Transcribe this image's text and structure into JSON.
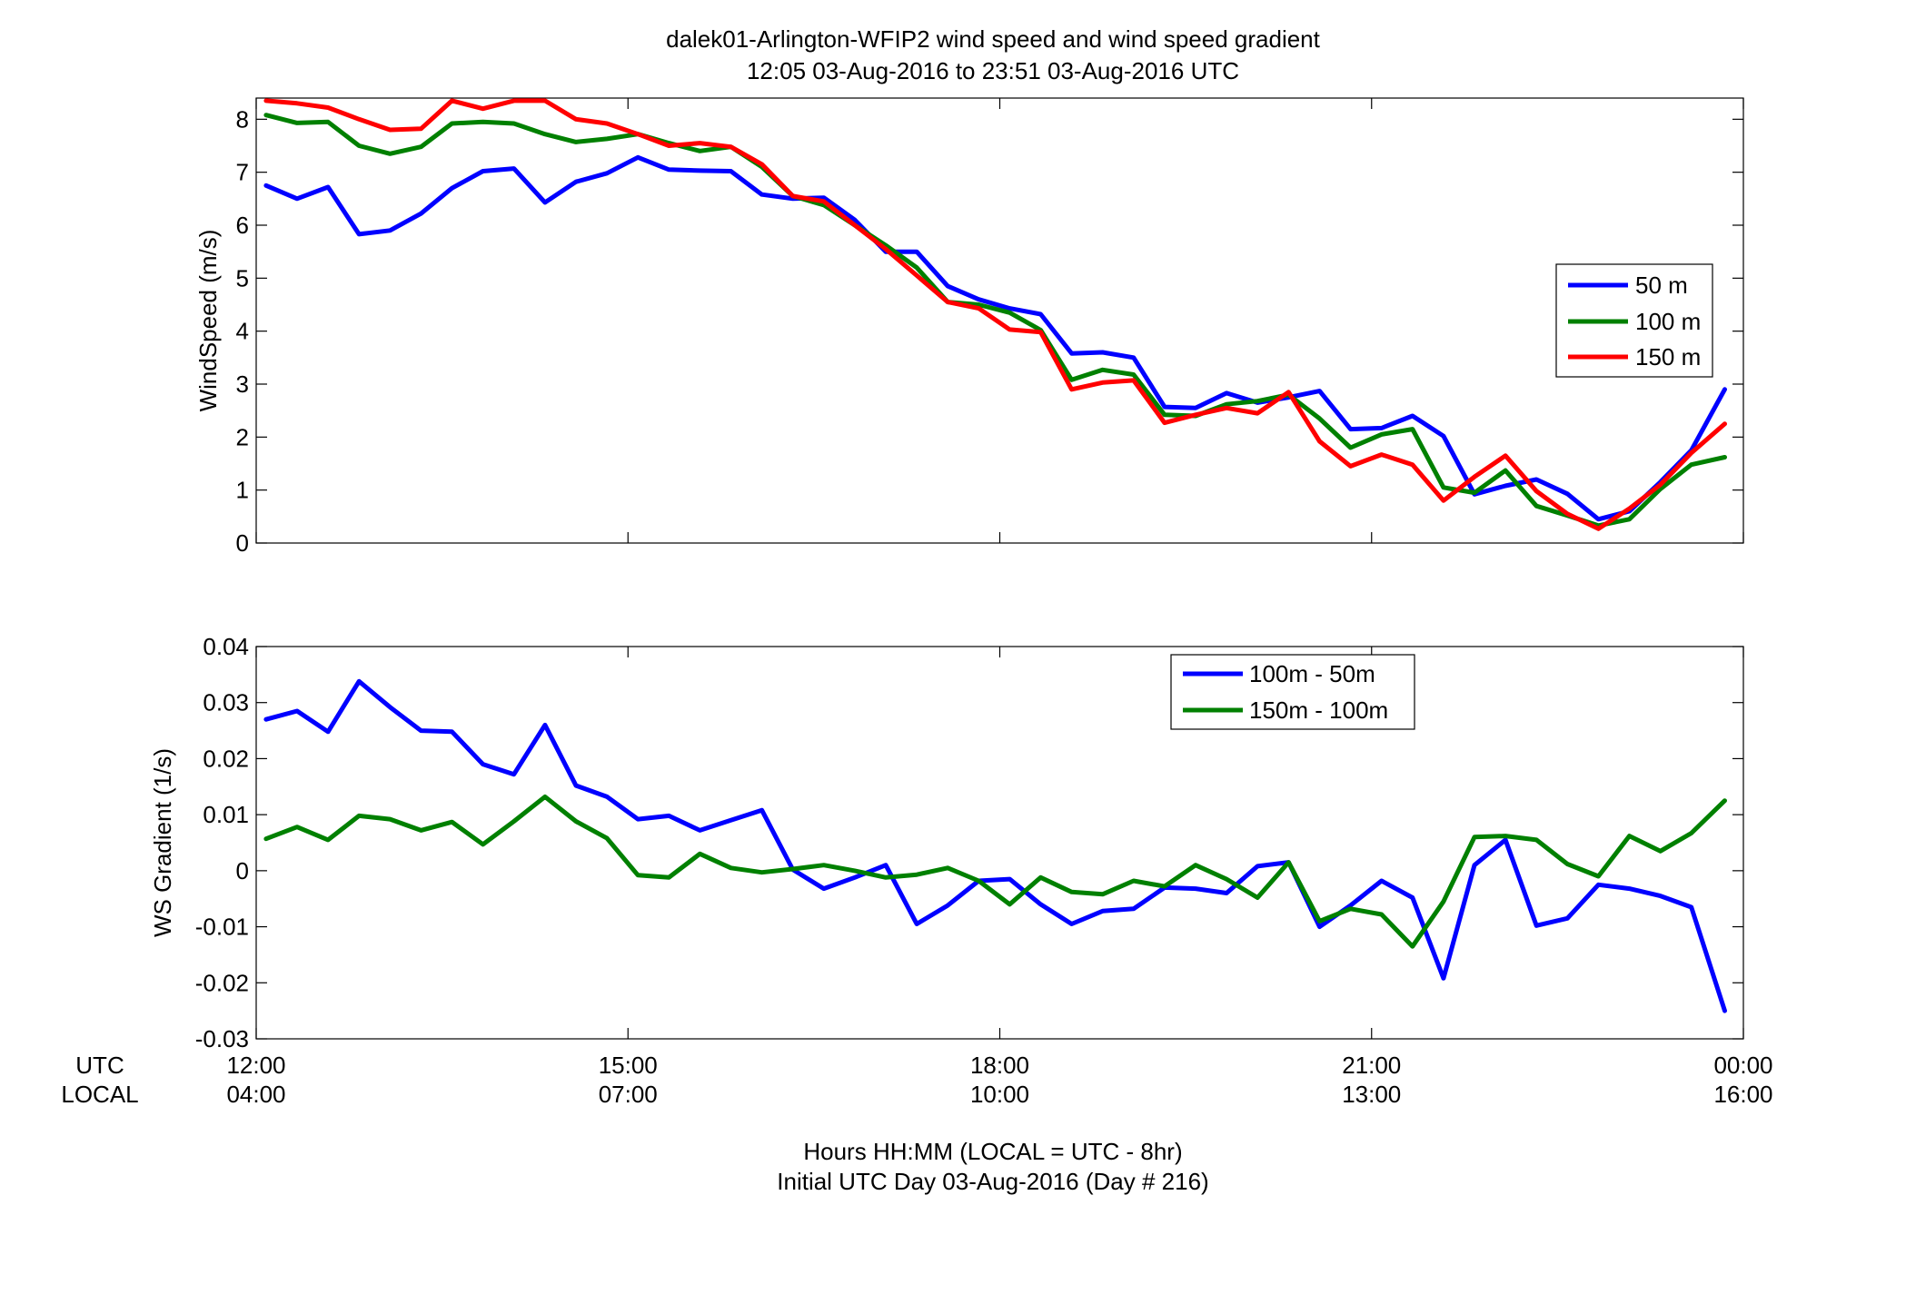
{
  "title": {
    "line1": "dalek01-Arlington-WFIP2  wind speed and wind speed gradient",
    "line2": "12:05 03-Aug-2016 to 23:51 03-Aug-2016  UTC"
  },
  "xaxis": {
    "row_label_utc": "UTC",
    "row_label_local": "LOCAL",
    "utc_ticks": [
      "12:00",
      "15:00",
      "18:00",
      "21:00",
      "00:00"
    ],
    "local_ticks": [
      "04:00",
      "07:00",
      "10:00",
      "13:00",
      "16:00"
    ],
    "label_line1": "Hours HH:MM  (LOCAL = UTC - 8hr)",
    "label_line2": "Initial UTC Day 03-Aug-2016 (Day # 216)"
  },
  "chart_data": [
    {
      "type": "line",
      "ylabel": "WindSpeed (m/s)",
      "xlim": [
        12,
        24
      ],
      "ylim": [
        0,
        8.4
      ],
      "yticks": [
        0,
        1,
        2,
        3,
        4,
        5,
        6,
        7,
        8
      ],
      "ytick_labels": [
        "0",
        "1",
        "2",
        "3",
        "4",
        "5",
        "6",
        "7",
        "8"
      ],
      "legend_position": "right",
      "x": [
        12.08,
        12.33,
        12.58,
        12.83,
        13.08,
        13.33,
        13.58,
        13.83,
        14.08,
        14.33,
        14.58,
        14.83,
        15.08,
        15.33,
        15.58,
        15.83,
        16.08,
        16.33,
        16.58,
        16.83,
        17.08,
        17.33,
        17.58,
        17.83,
        18.08,
        18.33,
        18.58,
        18.83,
        19.08,
        19.33,
        19.58,
        19.83,
        20.08,
        20.33,
        20.58,
        20.83,
        21.08,
        21.33,
        21.58,
        21.83,
        22.08,
        22.33,
        22.58,
        22.83,
        23.08,
        23.33,
        23.58,
        23.85
      ],
      "series": [
        {
          "name": "50 m",
          "color": "#0000ff",
          "values": [
            6.75,
            6.5,
            6.72,
            5.83,
            5.9,
            6.22,
            6.7,
            7.02,
            7.07,
            6.43,
            6.82,
            6.98,
            7.28,
            7.05,
            7.03,
            7.02,
            6.58,
            6.5,
            6.52,
            6.1,
            5.5,
            5.5,
            4.85,
            4.6,
            4.43,
            4.32,
            3.58,
            3.6,
            3.5,
            2.57,
            2.55,
            2.83,
            2.65,
            2.75,
            2.87,
            2.15,
            2.17,
            2.4,
            2.02,
            0.92,
            1.08,
            1.2,
            0.93,
            0.45,
            0.6,
            1.15,
            1.75,
            2.9
          ]
        },
        {
          "name": "100 m",
          "color": "#008000",
          "values": [
            8.08,
            7.93,
            7.95,
            7.5,
            7.35,
            7.48,
            7.92,
            7.95,
            7.92,
            7.72,
            7.57,
            7.63,
            7.72,
            7.55,
            7.4,
            7.48,
            7.1,
            6.55,
            6.38,
            6.0,
            5.62,
            5.2,
            4.55,
            4.5,
            4.35,
            4.02,
            3.08,
            3.27,
            3.18,
            2.42,
            2.4,
            2.62,
            2.68,
            2.8,
            2.35,
            1.8,
            2.05,
            2.15,
            1.05,
            0.95,
            1.37,
            0.7,
            0.52,
            0.33,
            0.45,
            1.02,
            1.48,
            1.62
          ]
        },
        {
          "name": "150 m",
          "color": "#ff0000",
          "values": [
            8.35,
            8.3,
            8.22,
            8.0,
            7.8,
            7.82,
            8.35,
            8.2,
            8.35,
            8.35,
            8.0,
            7.92,
            7.72,
            7.5,
            7.55,
            7.48,
            7.15,
            6.55,
            6.45,
            6.0,
            5.55,
            5.05,
            4.55,
            4.43,
            4.03,
            3.98,
            2.9,
            3.03,
            3.07,
            2.27,
            2.42,
            2.55,
            2.45,
            2.85,
            1.92,
            1.45,
            1.67,
            1.48,
            0.8,
            1.25,
            1.65,
            0.98,
            0.55,
            0.27,
            0.65,
            1.1,
            1.7,
            2.25
          ]
        }
      ]
    },
    {
      "type": "line",
      "ylabel": "WS Gradient (1/s)",
      "xlim": [
        12,
        24
      ],
      "ylim": [
        -0.03,
        0.04
      ],
      "yticks": [
        -0.03,
        -0.02,
        -0.01,
        0,
        0.01,
        0.02,
        0.03,
        0.04
      ],
      "ytick_labels": [
        "-0.03",
        "-0.02",
        "-0.01",
        "0",
        "0.01",
        "0.02",
        "0.03",
        "0.04"
      ],
      "legend_position": "top-right",
      "x": [
        12.08,
        12.33,
        12.58,
        12.83,
        13.08,
        13.33,
        13.58,
        13.83,
        14.08,
        14.33,
        14.58,
        14.83,
        15.08,
        15.33,
        15.58,
        15.83,
        16.08,
        16.33,
        16.58,
        16.83,
        17.08,
        17.33,
        17.58,
        17.83,
        18.08,
        18.33,
        18.58,
        18.83,
        19.08,
        19.33,
        19.58,
        19.83,
        20.08,
        20.33,
        20.58,
        20.83,
        21.08,
        21.33,
        21.58,
        21.83,
        22.08,
        22.33,
        22.58,
        22.83,
        23.08,
        23.33,
        23.58,
        23.85
      ],
      "series": [
        {
          "name": "100m - 50m",
          "color": "#0000ff",
          "values": [
            0.027,
            0.0285,
            0.0248,
            0.0338,
            0.0292,
            0.025,
            0.0248,
            0.019,
            0.0172,
            0.026,
            0.0152,
            0.0132,
            0.0092,
            0.0098,
            0.0072,
            0.009,
            0.0108,
            0.0002,
            -0.0032,
            -0.0012,
            0.001,
            -0.0095,
            -0.0062,
            -0.0018,
            -0.0015,
            -0.006,
            -0.0095,
            -0.0072,
            -0.0068,
            -0.003,
            -0.0032,
            -0.004,
            0.0008,
            0.0015,
            -0.01,
            -0.0062,
            -0.0018,
            -0.0048,
            -0.0192,
            0.001,
            0.0055,
            -0.0098,
            -0.0085,
            -0.0025,
            -0.0032,
            -0.0045,
            -0.0065,
            -0.025
          ]
        },
        {
          "name": "150m - 100m",
          "color": "#008000",
          "values": [
            0.0057,
            0.0078,
            0.0055,
            0.0098,
            0.0092,
            0.0072,
            0.0087,
            0.0047,
            0.0088,
            0.0132,
            0.0088,
            0.0058,
            -0.0008,
            -0.0012,
            0.003,
            0.0005,
            -0.0003,
            0.0003,
            0.001,
            0.0,
            -0.0012,
            -0.0007,
            0.0005,
            -0.0018,
            -0.006,
            -0.0012,
            -0.0038,
            -0.0042,
            -0.0018,
            -0.0028,
            0.001,
            -0.0015,
            -0.0048,
            0.0015,
            -0.009,
            -0.0068,
            -0.0078,
            -0.0135,
            -0.0055,
            0.006,
            0.0062,
            0.0055,
            0.0012,
            -0.001,
            0.0062,
            0.0035,
            0.0067,
            0.0125
          ]
        }
      ]
    }
  ]
}
